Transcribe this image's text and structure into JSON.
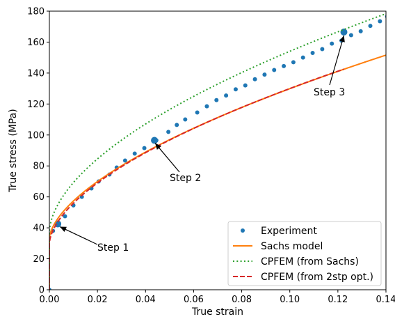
{
  "chart_data": {
    "type": "line",
    "xlabel": "True strain",
    "ylabel": "True stress (MPa)",
    "xlim": [
      0,
      0.14
    ],
    "ylim": [
      0,
      180
    ],
    "x_ticks": [
      "0.00",
      "0.02",
      "0.04",
      "0.06",
      "0.08",
      "0.10",
      "0.12",
      "0.14"
    ],
    "y_ticks": [
      "0",
      "20",
      "40",
      "60",
      "80",
      "100",
      "120",
      "140",
      "160",
      "180"
    ],
    "grid": false,
    "legend_position": "bottom-right",
    "series": [
      {
        "name": "Experiment",
        "style": "markers",
        "color": "#1f77b4",
        "x": [
          0.0,
          0.0015,
          0.004,
          0.0065,
          0.01,
          0.0135,
          0.0175,
          0.0205,
          0.025,
          0.028,
          0.0315,
          0.0355,
          0.0395,
          0.0445,
          0.0495,
          0.053,
          0.0565,
          0.0615,
          0.0655,
          0.0695,
          0.0735,
          0.0775,
          0.0815,
          0.0855,
          0.0895,
          0.0935,
          0.0975,
          0.1015,
          0.1055,
          0.1095,
          0.1135,
          0.1175,
          0.1215,
          0.1255,
          0.1295,
          0.1335,
          0.1375,
          0.1405
        ],
        "y": [
          0,
          38,
          43,
          47.5,
          54.5,
          60,
          65.5,
          70,
          74.5,
          79,
          83.5,
          88,
          91.5,
          96.5,
          102,
          106.5,
          110,
          114.5,
          118.5,
          122.5,
          125.5,
          129.5,
          132,
          136,
          139,
          142,
          144.5,
          147,
          150,
          153,
          155.5,
          159,
          161,
          164.5,
          167,
          170.5,
          173.5,
          176.5
        ]
      },
      {
        "name": "Sachs model",
        "style": "solid",
        "color": "#ff7f0e"
      },
      {
        "name": "CPFEM (from Sachs)",
        "style": "dotted",
        "color": "#2ca02c"
      },
      {
        "name": "CPFEM (from 2stp opt.)",
        "style": "dashed",
        "color": "#d62728"
      }
    ],
    "steps": [
      {
        "label": "Step 1",
        "x": 0.0035,
        "y": 42.5
      },
      {
        "label": "Step 2",
        "x": 0.0437,
        "y": 96.5
      },
      {
        "label": "Step 3",
        "x": 0.1225,
        "y": 166.5
      }
    ]
  }
}
